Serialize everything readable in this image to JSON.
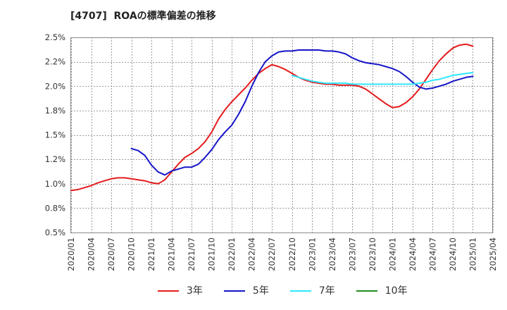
{
  "chart_data": {
    "type": "line",
    "title": "[4707]  ROAの標準偏差の推移",
    "xlabel": "",
    "ylabel": "",
    "ylim": [
      0.5,
      2.5
    ],
    "grid": true,
    "legend_position": "bottom",
    "xticks": [
      "2020/01",
      "2020/04",
      "2020/07",
      "2020/10",
      "2021/01",
      "2021/04",
      "2021/07",
      "2021/10",
      "2022/01",
      "2022/04",
      "2022/07",
      "2022/10",
      "2023/01",
      "2023/04",
      "2023/07",
      "2023/10",
      "2024/01",
      "2024/04",
      "2024/07",
      "2024/10",
      "2025/01",
      "2025/04"
    ],
    "yticks": [
      {
        "value": 2.5,
        "label": "2.5%"
      },
      {
        "value": 2.25,
        "label": "2.2%"
      },
      {
        "value": 2.0,
        "label": "2.0%"
      },
      {
        "value": 1.75,
        "label": "1.8%"
      },
      {
        "value": 1.5,
        "label": "1.5%"
      },
      {
        "value": 1.25,
        "label": "1.2%"
      },
      {
        "value": 1.0,
        "label": "1.0%"
      },
      {
        "value": 0.75,
        "label": "0.8%"
      },
      {
        "value": 0.5,
        "label": "0.5%"
      }
    ],
    "series": [
      {
        "name": "3年",
        "color": "#e41a1c",
        "start": {
          "year": 2020,
          "month": 1
        },
        "values": [
          0.93,
          0.94,
          0.96,
          0.98,
          1.01,
          1.03,
          1.05,
          1.06,
          1.06,
          1.05,
          1.04,
          1.03,
          1.01,
          1.0,
          1.04,
          1.12,
          1.2,
          1.27,
          1.31,
          1.36,
          1.43,
          1.53,
          1.66,
          1.76,
          1.84,
          1.91,
          1.98,
          2.06,
          2.13,
          2.18,
          2.22,
          2.2,
          2.17,
          2.13,
          2.09,
          2.06,
          2.04,
          2.03,
          2.02,
          2.02,
          2.01,
          2.01,
          2.01,
          2.0,
          1.97,
          1.92,
          1.87,
          1.82,
          1.78,
          1.79,
          1.83,
          1.89,
          1.97,
          2.07,
          2.17,
          2.26,
          2.33,
          2.39,
          2.42,
          2.43,
          2.41
        ]
      },
      {
        "name": "5年",
        "color": "#1515c8",
        "start": {
          "year": 2020,
          "month": 10
        },
        "values": [
          1.36,
          1.34,
          1.29,
          1.19,
          1.12,
          1.09,
          1.13,
          1.15,
          1.17,
          1.17,
          1.2,
          1.27,
          1.35,
          1.45,
          1.53,
          1.6,
          1.71,
          1.84,
          2.0,
          2.14,
          2.25,
          2.31,
          2.35,
          2.36,
          2.36,
          2.37,
          2.37,
          2.37,
          2.37,
          2.36,
          2.36,
          2.35,
          2.33,
          2.29,
          2.26,
          2.24,
          2.23,
          2.22,
          2.2,
          2.18,
          2.15,
          2.1,
          2.04,
          1.99,
          1.97,
          1.98,
          2.0,
          2.02,
          2.05,
          2.07,
          2.09,
          2.1
        ]
      },
      {
        "name": "7年",
        "color": "#2ee8ff",
        "start": {
          "year": 2022,
          "month": 10
        },
        "values": [
          2.11,
          2.09,
          2.07,
          2.05,
          2.04,
          2.03,
          2.03,
          2.03,
          2.03,
          2.02,
          2.02,
          2.02,
          2.02,
          2.02,
          2.02,
          2.02,
          2.02,
          2.02,
          2.02,
          2.03,
          2.04,
          2.06,
          2.07,
          2.09,
          2.11,
          2.12,
          2.13,
          2.14
        ]
      },
      {
        "name": "10年",
        "color": "#1f8f1f",
        "start": null,
        "values": []
      }
    ]
  }
}
